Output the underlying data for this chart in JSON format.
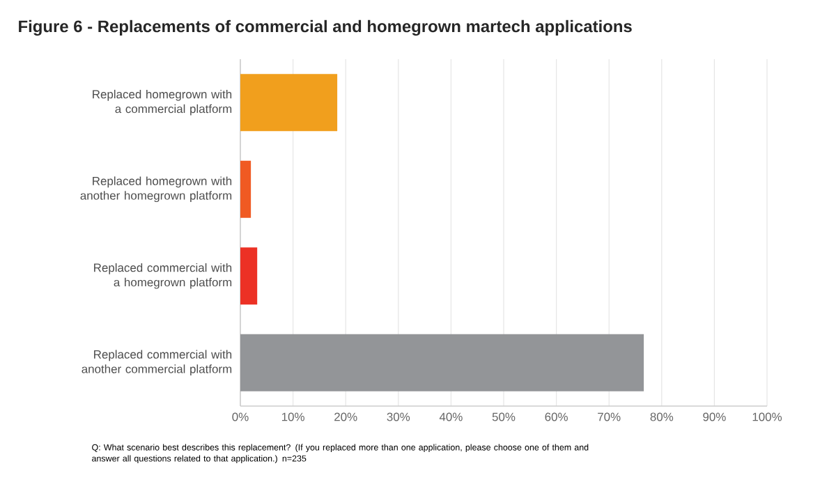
{
  "chart_data": {
    "type": "bar",
    "orientation": "horizontal",
    "title": "Figure 6 - Replacements of commercial and homegrown martech applications",
    "categories": [
      "Replaced homegrown with a commercial platform",
      "Replaced homegrown with another homegrown platform",
      "Replaced commercial with a homegrown platform",
      "Replaced commercial with another commercial platform"
    ],
    "values": [
      18.4,
      2.0,
      3.2,
      76.6
    ],
    "colors": [
      "#f19f1d",
      "#f05a22",
      "#ec3125",
      "#939598"
    ],
    "xlim": [
      0,
      100
    ],
    "xticks": [
      {
        "value": 0,
        "label": "0%"
      },
      {
        "value": 10,
        "label": "10%"
      },
      {
        "value": 20,
        "label": "20%"
      },
      {
        "value": 30,
        "label": "30%"
      },
      {
        "value": 40,
        "label": "40%"
      },
      {
        "value": 50,
        "label": "50%"
      },
      {
        "value": 60,
        "label": "60%"
      },
      {
        "value": 70,
        "label": "70%"
      },
      {
        "value": 80,
        "label": "80%"
      },
      {
        "value": 90,
        "label": "90%"
      },
      {
        "value": 100,
        "label": "100%"
      }
    ],
    "grid": "x",
    "annotations": [
      "Q: What scenario best describes this replacement? (If you replaced more than one application, please choose one of them and answer all questions  related to that application.) n=235"
    ]
  }
}
